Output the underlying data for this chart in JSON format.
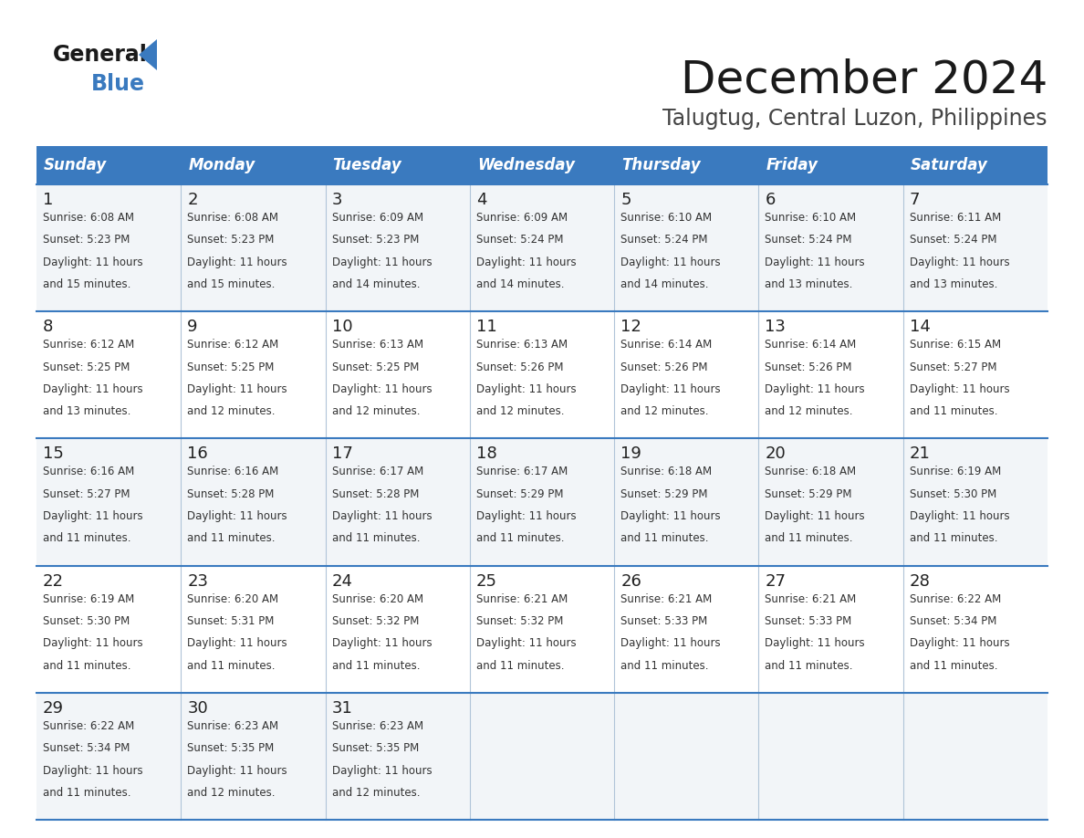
{
  "title": "December 2024",
  "subtitle": "Talugtug, Central Luzon, Philippines",
  "header_color": "#3a7abf",
  "header_text_color": "#ffffff",
  "row_bg": [
    "#f2f5f8",
    "#ffffff",
    "#f2f5f8",
    "#ffffff",
    "#f2f5f8"
  ],
  "days_of_week": [
    "Sunday",
    "Monday",
    "Tuesday",
    "Wednesday",
    "Thursday",
    "Friday",
    "Saturday"
  ],
  "calendar": [
    [
      {
        "day": 1,
        "sunrise": "6:08 AM",
        "sunset": "5:23 PM",
        "daylight": "11 hours and 15 minutes."
      },
      {
        "day": 2,
        "sunrise": "6:08 AM",
        "sunset": "5:23 PM",
        "daylight": "11 hours and 15 minutes."
      },
      {
        "day": 3,
        "sunrise": "6:09 AM",
        "sunset": "5:23 PM",
        "daylight": "11 hours and 14 minutes."
      },
      {
        "day": 4,
        "sunrise": "6:09 AM",
        "sunset": "5:24 PM",
        "daylight": "11 hours and 14 minutes."
      },
      {
        "day": 5,
        "sunrise": "6:10 AM",
        "sunset": "5:24 PM",
        "daylight": "11 hours and 14 minutes."
      },
      {
        "day": 6,
        "sunrise": "6:10 AM",
        "sunset": "5:24 PM",
        "daylight": "11 hours and 13 minutes."
      },
      {
        "day": 7,
        "sunrise": "6:11 AM",
        "sunset": "5:24 PM",
        "daylight": "11 hours and 13 minutes."
      }
    ],
    [
      {
        "day": 8,
        "sunrise": "6:12 AM",
        "sunset": "5:25 PM",
        "daylight": "11 hours and 13 minutes."
      },
      {
        "day": 9,
        "sunrise": "6:12 AM",
        "sunset": "5:25 PM",
        "daylight": "11 hours and 12 minutes."
      },
      {
        "day": 10,
        "sunrise": "6:13 AM",
        "sunset": "5:25 PM",
        "daylight": "11 hours and 12 minutes."
      },
      {
        "day": 11,
        "sunrise": "6:13 AM",
        "sunset": "5:26 PM",
        "daylight": "11 hours and 12 minutes."
      },
      {
        "day": 12,
        "sunrise": "6:14 AM",
        "sunset": "5:26 PM",
        "daylight": "11 hours and 12 minutes."
      },
      {
        "day": 13,
        "sunrise": "6:14 AM",
        "sunset": "5:26 PM",
        "daylight": "11 hours and 12 minutes."
      },
      {
        "day": 14,
        "sunrise": "6:15 AM",
        "sunset": "5:27 PM",
        "daylight": "11 hours and 11 minutes."
      }
    ],
    [
      {
        "day": 15,
        "sunrise": "6:16 AM",
        "sunset": "5:27 PM",
        "daylight": "11 hours and 11 minutes."
      },
      {
        "day": 16,
        "sunrise": "6:16 AM",
        "sunset": "5:28 PM",
        "daylight": "11 hours and 11 minutes."
      },
      {
        "day": 17,
        "sunrise": "6:17 AM",
        "sunset": "5:28 PM",
        "daylight": "11 hours and 11 minutes."
      },
      {
        "day": 18,
        "sunrise": "6:17 AM",
        "sunset": "5:29 PM",
        "daylight": "11 hours and 11 minutes."
      },
      {
        "day": 19,
        "sunrise": "6:18 AM",
        "sunset": "5:29 PM",
        "daylight": "11 hours and 11 minutes."
      },
      {
        "day": 20,
        "sunrise": "6:18 AM",
        "sunset": "5:29 PM",
        "daylight": "11 hours and 11 minutes."
      },
      {
        "day": 21,
        "sunrise": "6:19 AM",
        "sunset": "5:30 PM",
        "daylight": "11 hours and 11 minutes."
      }
    ],
    [
      {
        "day": 22,
        "sunrise": "6:19 AM",
        "sunset": "5:30 PM",
        "daylight": "11 hours and 11 minutes."
      },
      {
        "day": 23,
        "sunrise": "6:20 AM",
        "sunset": "5:31 PM",
        "daylight": "11 hours and 11 minutes."
      },
      {
        "day": 24,
        "sunrise": "6:20 AM",
        "sunset": "5:32 PM",
        "daylight": "11 hours and 11 minutes."
      },
      {
        "day": 25,
        "sunrise": "6:21 AM",
        "sunset": "5:32 PM",
        "daylight": "11 hours and 11 minutes."
      },
      {
        "day": 26,
        "sunrise": "6:21 AM",
        "sunset": "5:33 PM",
        "daylight": "11 hours and 11 minutes."
      },
      {
        "day": 27,
        "sunrise": "6:21 AM",
        "sunset": "5:33 PM",
        "daylight": "11 hours and 11 minutes."
      },
      {
        "day": 28,
        "sunrise": "6:22 AM",
        "sunset": "5:34 PM",
        "daylight": "11 hours and 11 minutes."
      }
    ],
    [
      {
        "day": 29,
        "sunrise": "6:22 AM",
        "sunset": "5:34 PM",
        "daylight": "11 hours and 11 minutes."
      },
      {
        "day": 30,
        "sunrise": "6:23 AM",
        "sunset": "5:35 PM",
        "daylight": "11 hours and 12 minutes."
      },
      {
        "day": 31,
        "sunrise": "6:23 AM",
        "sunset": "5:35 PM",
        "daylight": "11 hours and 12 minutes."
      },
      null,
      null,
      null,
      null
    ]
  ],
  "logo_general_color": "#1a1a1a",
  "logo_blue_color": "#3a7abf",
  "logo_triangle_color": "#3a7abf",
  "title_fontsize": 36,
  "subtitle_fontsize": 17,
  "header_fontsize": 12,
  "day_num_fontsize": 13,
  "cell_text_fontsize": 8.5,
  "divider_color": "#3a7abf",
  "vert_line_color": "#b0c4d8"
}
